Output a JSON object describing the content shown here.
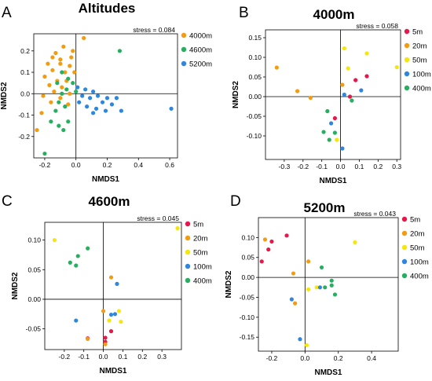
{
  "chart_data": [
    {
      "type": "scatter",
      "panel_label": "A",
      "title": "Altitudes",
      "xlabel": "NMDS1",
      "ylabel": "NMDS2",
      "stress": "stress = 0.084",
      "xlim": [
        -0.27,
        0.65
      ],
      "ylim": [
        -0.3,
        0.28
      ],
      "xticks": [
        -0.2,
        0.0,
        0.2,
        0.4,
        0.6
      ],
      "xtick_labels": [
        "-0.2",
        "0.0",
        "0.2",
        "0.4",
        "0.6"
      ],
      "yticks": [
        -0.2,
        -0.1,
        0.0,
        0.1,
        0.2
      ],
      "ytick_labels": [
        "-0.2",
        "-0.1",
        "0.0",
        "0.1",
        "0.2"
      ],
      "grid": false,
      "legend_position": "right",
      "series": [
        {
          "name": "4000m",
          "color": "#F39C12",
          "points": [
            [
              0.05,
              0.26
            ],
            [
              -0.08,
              0.22
            ],
            [
              -0.02,
              0.2
            ],
            [
              -0.13,
              0.19
            ],
            [
              -0.15,
              0.17
            ],
            [
              -0.1,
              0.16
            ],
            [
              -0.03,
              0.17
            ],
            [
              -0.18,
              0.14
            ],
            [
              -0.1,
              0.14
            ],
            [
              -0.04,
              0.13
            ],
            [
              -0.15,
              0.11
            ],
            [
              -0.07,
              0.1
            ],
            [
              -0.01,
              0.1
            ],
            [
              -0.2,
              0.08
            ],
            [
              -0.12,
              0.06
            ],
            [
              -0.06,
              0.06
            ],
            [
              -0.17,
              0.04
            ],
            [
              -0.09,
              0.03
            ],
            [
              -0.14,
              0.01
            ],
            [
              -0.04,
              0.0
            ],
            [
              -0.21,
              -0.01
            ],
            [
              -0.1,
              -0.02
            ],
            [
              -0.16,
              -0.04
            ],
            [
              -0.05,
              -0.05
            ],
            [
              -0.22,
              -0.09
            ],
            [
              -0.25,
              -0.17
            ]
          ]
        },
        {
          "name": "4600m",
          "color": "#27AE60",
          "points": [
            [
              0.28,
              0.2
            ],
            [
              -0.09,
              0.1
            ],
            [
              -0.05,
              0.07
            ],
            [
              -0.12,
              0.05
            ],
            [
              -0.02,
              0.05
            ],
            [
              -0.06,
              0.02
            ],
            [
              0.0,
              0.01
            ],
            [
              -0.09,
              0.0
            ],
            [
              -0.11,
              -0.04
            ],
            [
              -0.07,
              -0.06
            ],
            [
              -0.13,
              -0.08
            ],
            [
              -0.16,
              -0.13
            ],
            [
              -0.05,
              -0.13
            ],
            [
              -0.11,
              -0.15
            ],
            [
              -0.08,
              -0.17
            ],
            [
              -0.2,
              -0.28
            ]
          ]
        },
        {
          "name": "5200m",
          "color": "#2E86DE",
          "points": [
            [
              0.01,
              0.03
            ],
            [
              0.06,
              0.02
            ],
            [
              0.11,
              0.01
            ],
            [
              0.04,
              -0.01
            ],
            [
              0.14,
              -0.01
            ],
            [
              0.09,
              -0.02
            ],
            [
              0.2,
              -0.02
            ],
            [
              0.26,
              -0.02
            ],
            [
              0.02,
              -0.04
            ],
            [
              0.17,
              -0.04
            ],
            [
              0.23,
              -0.05
            ],
            [
              0.07,
              -0.06
            ],
            [
              0.13,
              -0.07
            ],
            [
              0.19,
              -0.08
            ],
            [
              0.29,
              -0.08
            ],
            [
              0.11,
              -0.09
            ],
            [
              0.61,
              -0.07
            ]
          ]
        }
      ]
    },
    {
      "type": "scatter",
      "panel_label": "B",
      "title": "4000m",
      "xlabel": "NMDS1",
      "ylabel": "NMDS2",
      "stress": "stress = 0.058",
      "xlim": [
        -0.4,
        0.32
      ],
      "ylim": [
        -0.16,
        0.17
      ],
      "xticks": [
        -0.3,
        -0.2,
        -0.1,
        0.0,
        0.1,
        0.2,
        0.3
      ],
      "xtick_labels": [
        "-0.3",
        "-0.2",
        "-0.1",
        "0.0",
        "0.1",
        "0.2",
        "0.3"
      ],
      "yticks": [
        -0.1,
        -0.05,
        0.0,
        0.05,
        0.1,
        0.15
      ],
      "ytick_labels": [
        "-0.10",
        "-0.05",
        "0.00",
        "0.05",
        "0.10",
        "0.15"
      ],
      "grid": false,
      "legend_position": "right",
      "series": [
        {
          "name": "5m",
          "color": "#E8174A",
          "points": [
            [
              0.14,
              0.052
            ],
            [
              0.08,
              0.042
            ],
            [
              0.05,
              0.0
            ],
            [
              -0.03,
              -0.055
            ]
          ]
        },
        {
          "name": "20m",
          "color": "#F39C12",
          "points": [
            [
              -0.34,
              0.074
            ],
            [
              -0.23,
              0.014
            ],
            [
              -0.16,
              -0.003
            ],
            [
              0.01,
              0.03
            ]
          ]
        },
        {
          "name": "50m",
          "color": "#F5E60C",
          "points": [
            [
              0.02,
              0.123
            ],
            [
              0.14,
              0.11
            ],
            [
              0.3,
              0.075
            ],
            [
              0.04,
              0.072
            ],
            [
              -0.02,
              -0.11
            ]
          ]
        },
        {
          "name": "100m",
          "color": "#2E86DE",
          "points": [
            [
              0.11,
              0.016
            ],
            [
              0.02,
              0.005
            ],
            [
              -0.05,
              -0.068
            ],
            [
              0.01,
              -0.132
            ]
          ]
        },
        {
          "name": "400m",
          "color": "#27AE60",
          "points": [
            [
              0.06,
              -0.01
            ],
            [
              -0.07,
              -0.037
            ],
            [
              -0.09,
              -0.09
            ],
            [
              -0.06,
              -0.11
            ],
            [
              -0.03,
              -0.092
            ]
          ]
        }
      ]
    },
    {
      "type": "scatter",
      "panel_label": "C",
      "title": "4600m",
      "xlabel": "NMDS1",
      "ylabel": "NMDS2",
      "stress": "stress = 0.045",
      "xlim": [
        -0.3,
        0.4
      ],
      "ylim": [
        -0.085,
        0.13
      ],
      "xticks": [
        -0.2,
        -0.1,
        0.0,
        0.1,
        0.2,
        0.3
      ],
      "xtick_labels": [
        "-0.2",
        "-0.1",
        "0.0",
        "0.1",
        "0.2",
        "0.3"
      ],
      "yticks": [
        -0.05,
        0.0,
        0.05,
        0.1
      ],
      "ytick_labels": [
        "-0.05",
        "0.00",
        "0.05",
        "0.10"
      ],
      "grid": false,
      "legend_position": "right",
      "series": [
        {
          "name": "5m",
          "color": "#E8174A",
          "points": [
            [
              0.04,
              -0.054
            ],
            [
              0.01,
              -0.065
            ],
            [
              -0.08,
              -0.066
            ],
            [
              0.01,
              -0.072
            ]
          ]
        },
        {
          "name": "20m",
          "color": "#F39C12",
          "points": [
            [
              0.04,
              0.037
            ],
            [
              0.0,
              -0.02
            ],
            [
              -0.08,
              -0.067
            ],
            [
              0.01,
              -0.076
            ]
          ]
        },
        {
          "name": "50m",
          "color": "#F5E60C",
          "points": [
            [
              0.38,
              0.12
            ],
            [
              -0.25,
              0.1
            ],
            [
              0.08,
              -0.02
            ],
            [
              0.03,
              -0.036
            ],
            [
              0.09,
              -0.038
            ]
          ]
        },
        {
          "name": "100m",
          "color": "#2E86DE",
          "points": [
            [
              0.07,
              0.026
            ],
            [
              0.06,
              -0.025
            ],
            [
              0.04,
              -0.026
            ],
            [
              -0.14,
              -0.036
            ]
          ]
        },
        {
          "name": "400m",
          "color": "#27AE60",
          "points": [
            [
              -0.08,
              0.086
            ],
            [
              -0.13,
              0.073
            ],
            [
              -0.17,
              0.062
            ],
            [
              -0.14,
              0.057
            ]
          ]
        }
      ]
    },
    {
      "type": "scatter",
      "panel_label": "D",
      "title": "5200m",
      "xlabel": "NMDS1",
      "ylabel": "NMDS2",
      "stress": "stress = 0.043",
      "xlim": [
        -0.28,
        0.56
      ],
      "ylim": [
        -0.185,
        0.15
      ],
      "xticks": [
        -0.2,
        0.0,
        0.2,
        0.4
      ],
      "xtick_labels": [
        "-0.2",
        "0.0",
        "0.2",
        "0.4"
      ],
      "yticks": [
        -0.15,
        -0.1,
        -0.05,
        0.0,
        0.05,
        0.1
      ],
      "ytick_labels": [
        "-0.15",
        "-0.10",
        "-0.05",
        "0.00",
        "0.05",
        "0.10"
      ],
      "grid": false,
      "legend_position": "right",
      "series": [
        {
          "name": "5m",
          "color": "#E8174A",
          "points": [
            [
              -0.11,
              0.105
            ],
            [
              -0.2,
              0.09
            ],
            [
              -0.22,
              0.07
            ],
            [
              -0.26,
              0.04
            ]
          ]
        },
        {
          "name": "20m",
          "color": "#F39C12",
          "points": [
            [
              -0.24,
              0.095
            ],
            [
              0.02,
              0.04
            ],
            [
              -0.07,
              0.01
            ],
            [
              -0.06,
              -0.065
            ]
          ]
        },
        {
          "name": "50m",
          "color": "#F5E60C",
          "points": [
            [
              0.3,
              0.088
            ],
            [
              0.07,
              -0.025
            ],
            [
              0.02,
              -0.03
            ],
            [
              0.01,
              -0.17
            ]
          ]
        },
        {
          "name": "100m",
          "color": "#2E86DE",
          "points": [
            [
              0.09,
              -0.025
            ],
            [
              -0.08,
              -0.055
            ],
            [
              -0.03,
              -0.155
            ]
          ]
        },
        {
          "name": "400m",
          "color": "#27AE60",
          "points": [
            [
              0.1,
              0.025
            ],
            [
              0.16,
              -0.008
            ],
            [
              0.16,
              -0.02
            ],
            [
              0.12,
              -0.025
            ],
            [
              0.18,
              -0.043
            ]
          ]
        }
      ]
    }
  ]
}
